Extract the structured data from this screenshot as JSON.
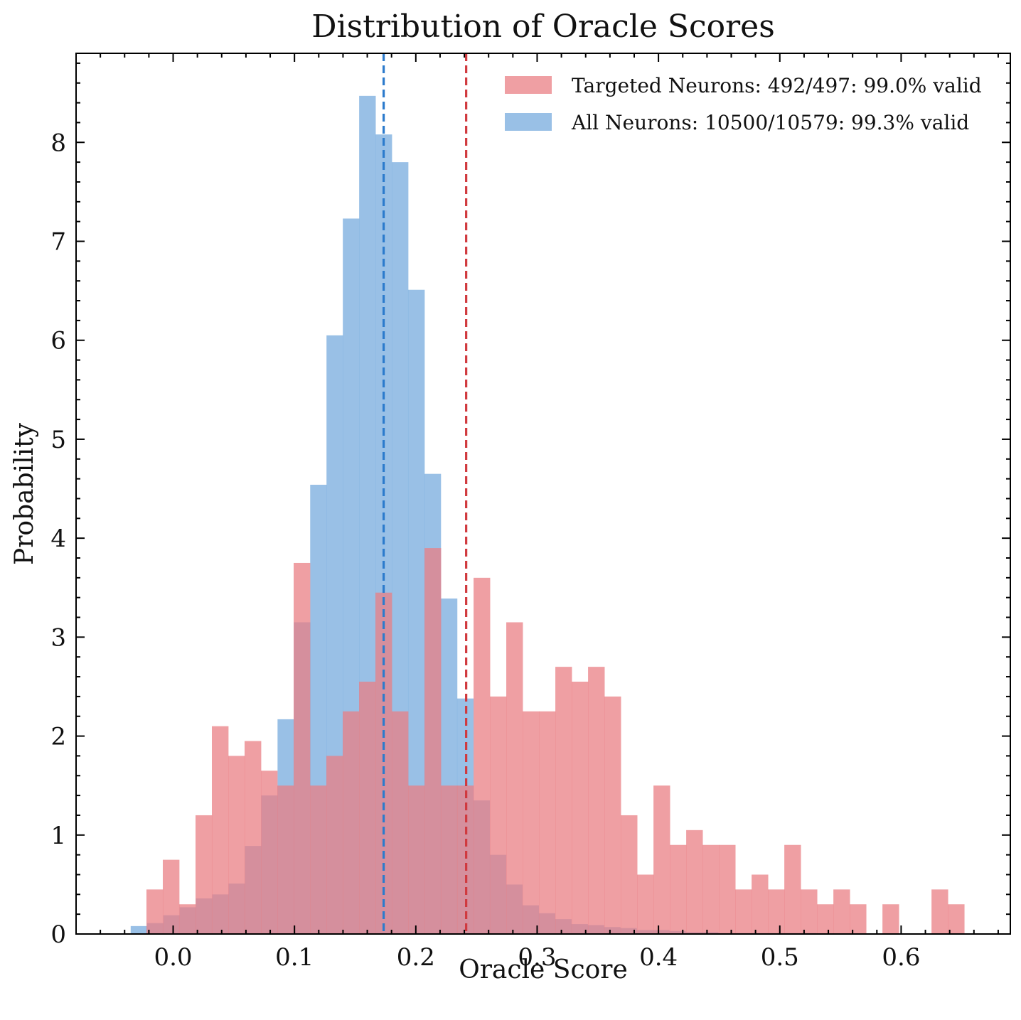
{
  "chart_data": {
    "type": "bar",
    "title": "Distribution of Oracle Scores",
    "xlabel": "Oracle Score",
    "ylabel": "Probability",
    "xlim": [
      -0.08,
      0.69
    ],
    "ylim": [
      0,
      8.9
    ],
    "xticks": [
      0.0,
      0.1,
      0.2,
      0.3,
      0.4,
      0.5,
      0.6
    ],
    "xtick_labels": [
      "0.0",
      "0.1",
      "0.2",
      "0.3",
      "0.4",
      "0.5",
      "0.6"
    ],
    "yticks": [
      0,
      1,
      2,
      3,
      4,
      5,
      6,
      7,
      8
    ],
    "ytick_labels": [
      "0",
      "1",
      "2",
      "3",
      "4",
      "5",
      "6",
      "7",
      "8"
    ],
    "grid": false,
    "legend_position": "top-right",
    "series": [
      {
        "name": "All Neurons: 10500/10579: 99.3% valid",
        "color": "#7fb0e0",
        "alpha": 0.8,
        "bin_start": -0.035,
        "bin_width": 0.01345,
        "values": [
          0.08,
          0.11,
          0.19,
          0.27,
          0.36,
          0.4,
          0.51,
          0.89,
          1.4,
          2.17,
          3.15,
          4.54,
          6.05,
          7.23,
          8.47,
          8.08,
          7.8,
          6.51,
          4.65,
          3.39,
          2.38,
          1.35,
          0.8,
          0.5,
          0.29,
          0.21,
          0.15,
          0.1,
          0.09,
          0.07,
          0.06,
          0.04,
          0.04,
          0.03,
          0.02,
          0.02,
          0.01,
          0.01,
          0.01,
          0.01,
          0.01,
          0.01,
          0.0,
          0.0,
          0.0,
          0.0,
          0.0,
          0.0,
          0.0,
          0.0
        ]
      },
      {
        "name": "Targeted Neurons: 492/497: 99.0% valid",
        "color": "#ea7f84",
        "alpha": 0.75,
        "bin_start": -0.022,
        "bin_width": 0.01348,
        "values": [
          0.45,
          0.75,
          0.3,
          1.2,
          2.1,
          1.8,
          1.95,
          1.65,
          1.5,
          3.75,
          1.5,
          1.8,
          2.25,
          2.55,
          3.45,
          2.25,
          1.5,
          3.9,
          1.5,
          1.5,
          3.6,
          2.4,
          3.15,
          2.25,
          2.25,
          2.7,
          2.55,
          2.7,
          2.4,
          1.2,
          0.6,
          1.5,
          0.9,
          1.05,
          0.9,
          0.9,
          0.45,
          0.6,
          0.45,
          0.9,
          0.45,
          0.3,
          0.45,
          0.3,
          0.0,
          0.3,
          0.0,
          0.0,
          0.45,
          0.3
        ]
      }
    ],
    "vlines": [
      {
        "x": 0.1735,
        "color": "#2c7bcc",
        "style": "dashed"
      },
      {
        "x": 0.2415,
        "color": "#d0393e",
        "style": "dashed"
      }
    ]
  }
}
